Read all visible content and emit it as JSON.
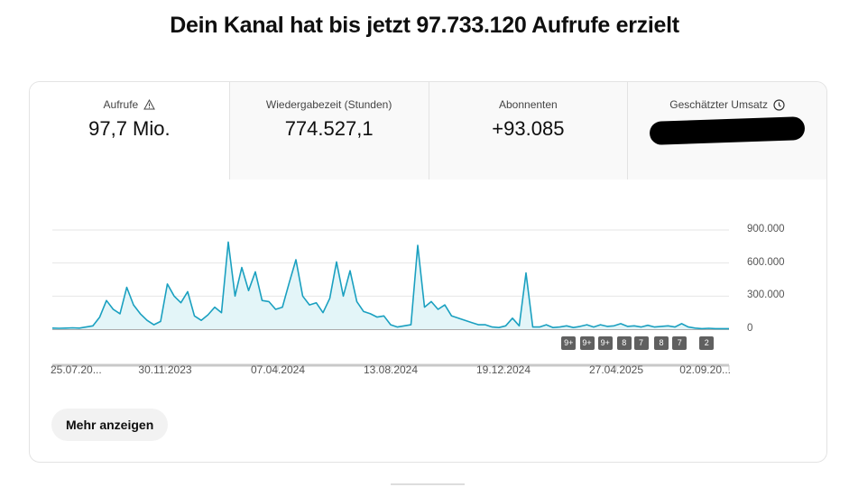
{
  "title": "Dein Kanal hat bis jetzt 97.733.120 Aufrufe erzielt",
  "metrics": [
    {
      "label": "Aufrufe",
      "value": "97,7 Mio.",
      "icon": "warning-icon"
    },
    {
      "label": "Wiedergabezeit (Stunden)",
      "value": "774.527,1"
    },
    {
      "label": "Abonnenten",
      "value": "+93.085"
    },
    {
      "label": "Geschätzter Umsatz",
      "value": "",
      "icon": "clock-icon",
      "redacted": true
    }
  ],
  "more_button": "Mehr anzeigen",
  "colors": {
    "line": "#1aa0c0",
    "fill": "#e3f5f8",
    "grid": "#e6e6e6"
  },
  "chart_data": {
    "type": "area",
    "title": "Aufrufe",
    "ylim": [
      0,
      900000
    ],
    "yticks": [
      "900.000",
      "600.000",
      "300.000",
      "0"
    ],
    "ytick_values": [
      900000,
      600000,
      300000,
      0
    ],
    "xticks": [
      "25.07.20...",
      "30.11.2023",
      "07.04.2024",
      "13.08.2024",
      "19.12.2024",
      "27.04.2025",
      "02.09.20..."
    ],
    "values_thousands": [
      10,
      8,
      10,
      12,
      10,
      20,
      30,
      110,
      260,
      180,
      140,
      380,
      220,
      140,
      80,
      40,
      70,
      410,
      300,
      240,
      340,
      120,
      80,
      130,
      200,
      150,
      790,
      300,
      560,
      350,
      520,
      260,
      250,
      180,
      200,
      420,
      630,
      300,
      220,
      240,
      150,
      280,
      610,
      300,
      530,
      250,
      160,
      140,
      110,
      120,
      40,
      20,
      30,
      40,
      760,
      200,
      250,
      180,
      220,
      120,
      100,
      80,
      60,
      40,
      40,
      20,
      15,
      30,
      100,
      30,
      510,
      20,
      20,
      40,
      15,
      20,
      30,
      15,
      25,
      40,
      20,
      40,
      25,
      30,
      50,
      25,
      30,
      20,
      35,
      20,
      25,
      30,
      20,
      50,
      20,
      10,
      5,
      8,
      5,
      5,
      5
    ],
    "annotations": [
      {
        "x": 76.3,
        "label": "9+"
      },
      {
        "x": 79,
        "label": "9+"
      },
      {
        "x": 81.7,
        "label": "9+"
      },
      {
        "x": 84.5,
        "label": "8"
      },
      {
        "x": 87,
        "label": "7"
      },
      {
        "x": 90,
        "label": "8"
      },
      {
        "x": 92.7,
        "label": "7"
      },
      {
        "x": 96.7,
        "label": "2"
      }
    ]
  }
}
